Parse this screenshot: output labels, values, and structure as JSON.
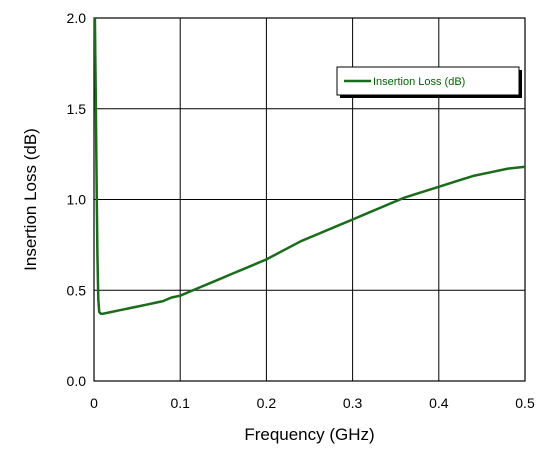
{
  "chart_data": {
    "type": "line",
    "xlabel": "Frequency (GHz)",
    "ylabel": "Insertion Loss (dB)",
    "xlim": [
      0,
      0.5
    ],
    "ylim": [
      0,
      2.0
    ],
    "x_ticks": [
      "0",
      "0.1",
      "0.2",
      "0.3",
      "0.4",
      "0.5"
    ],
    "y_ticks": [
      "0.0",
      "0.5",
      "1.0",
      "1.5",
      "2.0"
    ],
    "grid": true,
    "legend": {
      "position": "top-right",
      "entries": [
        "Insertion Loss (dB)"
      ]
    },
    "series": [
      {
        "name": "Insertion Loss (dB)",
        "color": "#1a6b1a",
        "x": [
          0.001,
          0.002,
          0.003,
          0.004,
          0.005,
          0.006,
          0.008,
          0.01,
          0.02,
          0.03,
          0.04,
          0.05,
          0.06,
          0.07,
          0.08,
          0.09,
          0.1,
          0.12,
          0.14,
          0.16,
          0.18,
          0.2,
          0.22,
          0.24,
          0.26,
          0.28,
          0.3,
          0.32,
          0.34,
          0.36,
          0.38,
          0.4,
          0.42,
          0.44,
          0.46,
          0.48,
          0.5
        ],
        "y": [
          2.0,
          1.6,
          1.1,
          0.7,
          0.45,
          0.38,
          0.37,
          0.37,
          0.38,
          0.39,
          0.4,
          0.41,
          0.42,
          0.43,
          0.44,
          0.46,
          0.47,
          0.51,
          0.55,
          0.59,
          0.63,
          0.67,
          0.72,
          0.77,
          0.81,
          0.85,
          0.89,
          0.93,
          0.97,
          1.01,
          1.04,
          1.07,
          1.1,
          1.13,
          1.15,
          1.17,
          1.18
        ]
      }
    ]
  }
}
